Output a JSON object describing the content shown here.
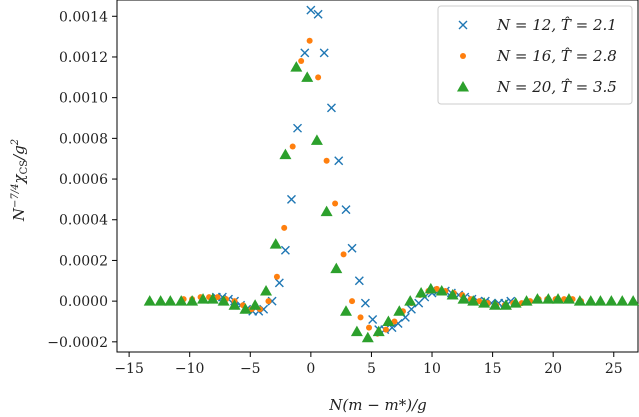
{
  "chart_data": {
    "type": "scatter",
    "xlabel": "N(m − m*)/g",
    "ylabel": "N^{-7/4} χ_CS / g^2",
    "ylabel_parts": {
      "base": "N",
      "sup": "−7/4",
      "chi": "χ",
      "sub": "CS",
      "rest": "/g",
      "sup2": "2"
    },
    "xlim": [
      -16,
      27
    ],
    "ylim": [
      -0.00025,
      0.00148
    ],
    "x_ticks": [
      -15,
      -10,
      -5,
      0,
      5,
      10,
      15,
      20,
      25
    ],
    "x_tick_labels": [
      "−15",
      "−10",
      "−5",
      "0",
      "5",
      "10",
      "15",
      "20",
      "25"
    ],
    "y_ticks": [
      -0.0002,
      0.0,
      0.0002,
      0.0004,
      0.0006,
      0.0008,
      0.001,
      0.0012,
      0.0014
    ],
    "y_tick_labels": [
      "−0.0002",
      "0.0000",
      "0.0002",
      "0.0004",
      "0.0006",
      "0.0008",
      "0.0010",
      "0.0012",
      "0.0014"
    ],
    "grid": false,
    "legend_position": "top-right",
    "series": [
      {
        "name": "N = 12, T̂ = 2.1",
        "legend": {
          "n": "12",
          "t": "2.1"
        },
        "marker": "x",
        "color": "#1f77b4",
        "x": [
          -7.8,
          -7.3,
          -6.8,
          -6.3,
          -5.8,
          -5.3,
          -4.8,
          -4.3,
          -3.9,
          -3.2,
          -2.6,
          -2.1,
          -1.6,
          -1.1,
          -0.5,
          0.0,
          0.6,
          1.1,
          1.7,
          2.3,
          2.9,
          3.4,
          4.0,
          4.5,
          5.1,
          5.6,
          6.1,
          6.7,
          7.2,
          7.8,
          8.3,
          8.9,
          9.4,
          10.0,
          10.5,
          11.1,
          11.6,
          12.2,
          12.7,
          13.3,
          13.8,
          14.4,
          14.9,
          15.5,
          16.0,
          16.5
        ],
        "y": [
          2e-05,
          2e-05,
          1e-05,
          0.0,
          -2e-05,
          -4e-05,
          -5e-05,
          -5e-05,
          -4e-05,
          0.0,
          9e-05,
          0.00025,
          0.0005,
          0.00085,
          0.00122,
          0.00143,
          0.00141,
          0.00122,
          0.00095,
          0.00069,
          0.00045,
          0.00026,
          0.0001,
          -1e-05,
          -9e-05,
          -0.00014,
          -0.00014,
          -0.00013,
          -0.00011,
          -8e-05,
          -4e-05,
          -1e-05,
          2e-05,
          4e-05,
          5e-05,
          5e-05,
          4e-05,
          3e-05,
          2e-05,
          1e-05,
          0.0,
          0.0,
          -1e-05,
          -1e-05,
          -1e-05,
          0.0
        ]
      },
      {
        "name": "N = 16, T̂ = 2.8",
        "legend": {
          "n": "16",
          "t": "2.8"
        },
        "marker": "dot",
        "color": "#ff7f0e",
        "x": [
          -10.5,
          -9.8,
          -9.1,
          -8.4,
          -7.7,
          -7.0,
          -6.3,
          -5.6,
          -4.9,
          -4.2,
          -3.5,
          -2.8,
          -2.2,
          -1.5,
          -0.8,
          -0.1,
          0.6,
          1.3,
          2.0,
          2.7,
          3.4,
          4.1,
          4.8,
          5.5,
          6.2,
          6.9,
          7.6,
          8.3,
          9.0,
          9.7,
          10.4,
          11.1,
          11.8,
          12.5,
          13.2,
          13.9,
          14.6,
          15.3,
          16.0,
          16.7,
          17.4,
          18.1,
          18.8,
          19.5,
          20.2,
          20.9,
          21.6,
          22.3
        ],
        "y": [
          1e-05,
          1e-05,
          2e-05,
          2e-05,
          2e-05,
          1e-05,
          0.0,
          -2e-05,
          -4e-05,
          -4e-05,
          0.0,
          0.00012,
          0.00036,
          0.00076,
          0.00118,
          0.00128,
          0.0011,
          0.00069,
          0.00048,
          0.00023,
          0.0,
          -8e-05,
          -0.00013,
          -0.00016,
          -0.00014,
          -0.0001,
          -5e-05,
          -1e-05,
          3e-05,
          5e-05,
          6e-05,
          5e-05,
          4e-05,
          3e-05,
          1e-05,
          0.0,
          -1e-05,
          -2e-05,
          -2e-05,
          -1e-05,
          -1e-05,
          0.0,
          1e-05,
          1e-05,
          1e-05,
          1e-05,
          1e-05,
          0.0
        ]
      },
      {
        "name": "N = 20, T̂ = 3.5",
        "legend": {
          "n": "20",
          "t": "3.5"
        },
        "marker": "triangle",
        "color": "#2ca02c",
        "x": [
          -13.3,
          -12.4,
          -11.6,
          -10.7,
          -9.8,
          -8.9,
          -8.1,
          -7.2,
          -6.3,
          -5.4,
          -4.6,
          -3.7,
          -2.9,
          -2.1,
          -1.2,
          -0.3,
          0.5,
          1.3,
          2.1,
          2.9,
          3.8,
          4.7,
          5.6,
          6.4,
          7.3,
          8.2,
          9.1,
          9.9,
          10.8,
          11.7,
          12.6,
          13.4,
          14.3,
          15.2,
          16.1,
          16.9,
          17.8,
          18.7,
          19.6,
          20.4,
          21.3,
          22.2,
          23.1,
          23.9,
          24.8,
          25.7,
          26.6
        ],
        "y": [
          0.0,
          0.0,
          0.0,
          0.0,
          0.0,
          1e-05,
          1e-05,
          0.0,
          -2e-05,
          -4e-05,
          -2e-05,
          5e-05,
          0.00028,
          0.00072,
          0.00115,
          0.0011,
          0.00079,
          0.00044,
          0.00016,
          -5e-05,
          -0.00015,
          -0.00018,
          -0.00015,
          -0.0001,
          -5e-05,
          0.0,
          4e-05,
          6e-05,
          5e-05,
          3e-05,
          1e-05,
          0.0,
          -1e-05,
          -2e-05,
          -2e-05,
          -1e-05,
          0.0,
          1e-05,
          1e-05,
          1e-05,
          1e-05,
          0.0,
          0.0,
          0.0,
          0.0,
          0.0,
          0.0
        ]
      }
    ]
  }
}
